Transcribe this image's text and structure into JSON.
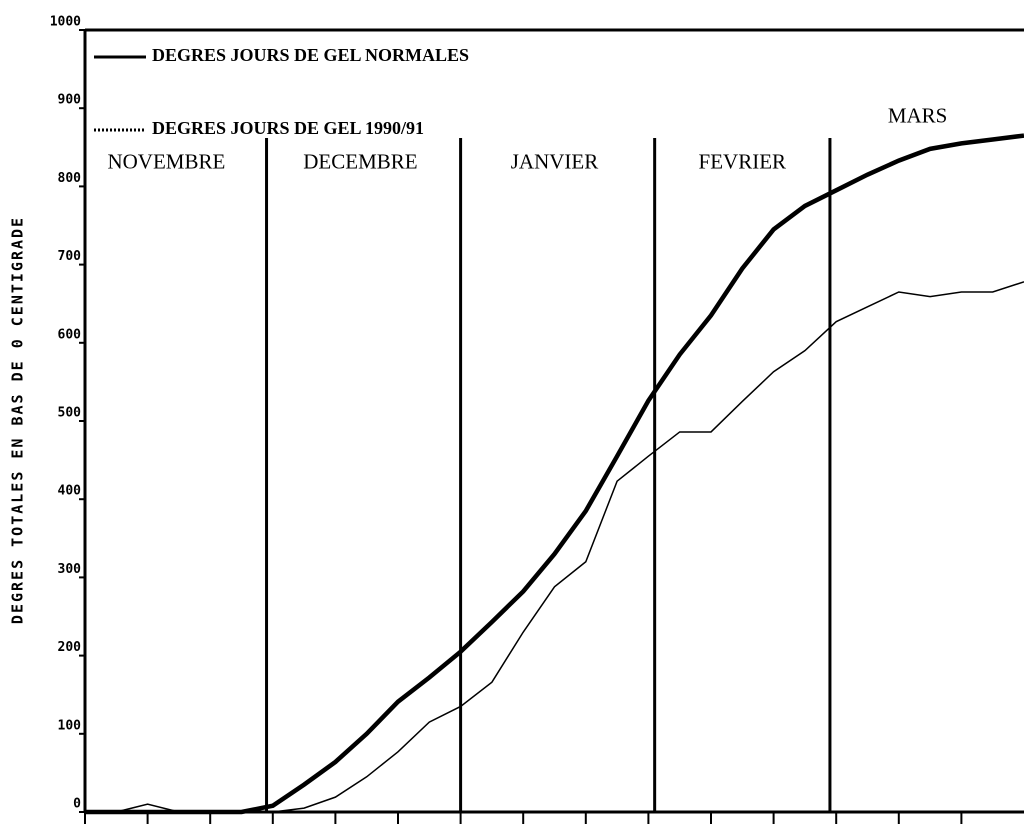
{
  "chart_data": {
    "type": "line",
    "y_label": "DEGRES TOTALES EN BAS DE 0 CENTIGRADE",
    "x": [
      0,
      5,
      10,
      15,
      20,
      25,
      30,
      35,
      40,
      45,
      50,
      55,
      60,
      65,
      70,
      75,
      80,
      85,
      90,
      95,
      100,
      105,
      110,
      115,
      120,
      125,
      130,
      135,
      140,
      145,
      150
    ],
    "series": [
      {
        "name": "DEGRES JOURS DE GEL NORMALES",
        "color": "#000000",
        "style": "solid",
        "values": [
          0,
          0,
          0,
          0,
          0,
          0,
          8,
          35,
          64,
          100,
          141,
          172,
          205,
          243,
          282,
          330,
          385,
          455,
          526,
          585,
          635,
          695,
          745,
          775,
          795,
          815,
          833,
          848,
          855,
          860,
          865
        ]
      },
      {
        "name": "DEGRES JOURS DE GEL 1990/91",
        "color": "#000000",
        "style": "dotted",
        "values": [
          0,
          0,
          10,
          0,
          0,
          0,
          0,
          5,
          19,
          45,
          77,
          115,
          135,
          166,
          230,
          288,
          320,
          423,
          455,
          486,
          486,
          525,
          563,
          590,
          627,
          646,
          665,
          659,
          665,
          665,
          678
        ]
      }
    ],
    "xlim": [
      0,
      150
    ],
    "xticks": [
      0,
      10,
      20,
      30,
      40,
      50,
      60,
      70,
      80,
      90,
      100,
      110,
      120,
      130,
      140
    ],
    "ylim": [
      0,
      1000
    ],
    "yticks": [
      0,
      100,
      200,
      300,
      400,
      500,
      600,
      700,
      800,
      900,
      1000
    ],
    "month_lines": [
      29,
      60,
      91,
      119
    ],
    "annotations": [
      {
        "text": "NOVEMBRE",
        "x": 13,
        "y": 829
      },
      {
        "text": "DECEMBRE",
        "x": 44,
        "y": 829
      },
      {
        "text": "JANVIER",
        "x": 75,
        "y": 829
      },
      {
        "text": "FEVRIER",
        "x": 105,
        "y": 829
      },
      {
        "text": "MARS",
        "x": 133,
        "y": 888
      }
    ]
  }
}
